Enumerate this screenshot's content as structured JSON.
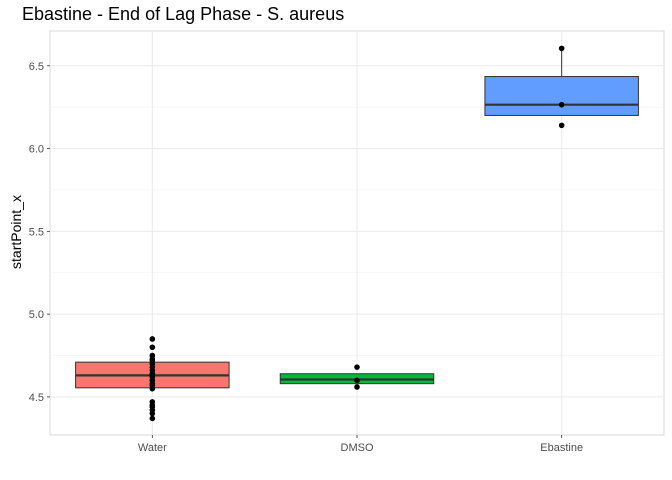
{
  "chart_data": {
    "type": "boxplot",
    "title": "Ebastine - End of Lag Phase - S. aureus",
    "xlabel": "",
    "ylabel": "startPoint_x",
    "ylim": [
      4.27,
      6.71
    ],
    "yticks": [
      4.5,
      5.0,
      5.5,
      6.0,
      6.5
    ],
    "ytick_labels": [
      "4.5",
      "5.0",
      "5.5",
      "6.0",
      "6.5"
    ],
    "grid": true,
    "categories": [
      "Water",
      "DMSO",
      "Ebastine"
    ],
    "boxes": [
      {
        "category": "Water",
        "color": "#f8766d",
        "q1": 4.555,
        "median": 4.63,
        "q3": 4.71,
        "whisker_low": 4.555,
        "whisker_high": 4.71,
        "points": [
          4.37,
          4.4,
          4.42,
          4.44,
          4.45,
          4.47,
          4.55,
          4.57,
          4.58,
          4.6,
          4.62,
          4.63,
          4.64,
          4.66,
          4.68,
          4.7,
          4.72,
          4.73,
          4.75,
          4.8,
          4.85
        ]
      },
      {
        "category": "DMSO",
        "color": "#00ba38",
        "q1": 4.58,
        "median": 4.605,
        "q3": 4.64,
        "whisker_low": 4.58,
        "whisker_high": 4.64,
        "points": [
          4.56,
          4.6,
          4.68
        ]
      },
      {
        "category": "Ebastine",
        "color": "#619cff",
        "q1": 6.2,
        "median": 6.265,
        "q3": 6.435,
        "whisker_low": 6.2,
        "whisker_high": 6.605,
        "points": [
          6.14,
          6.265,
          6.605
        ]
      }
    ]
  }
}
